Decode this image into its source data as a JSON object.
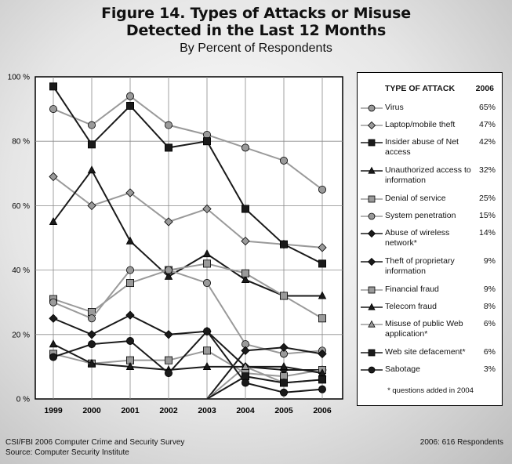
{
  "figure": {
    "title_line1": "Figure 14. Types of Attacks or Misuse",
    "title_line2": "Detected in the Last 12 Months",
    "subtitle": "By Percent of Respondents"
  },
  "legend": {
    "header_type": "TYPE OF ATTACK",
    "header_year": "2006",
    "note": "* questions added in 2004"
  },
  "footer": {
    "source_line1": "CSI/FBI 2006 Computer Crime and Security Survey",
    "source_line2": "Source: Computer Security Institute",
    "respondents": "2006: 616 Respondents"
  },
  "chart_data": {
    "type": "line",
    "x": [
      "1999",
      "2000",
      "2001",
      "2002",
      "2003",
      "2004",
      "2005",
      "2006"
    ],
    "ylim": [
      0,
      100
    ],
    "yticks": [
      0,
      20,
      40,
      60,
      80,
      100
    ],
    "ytick_labels": [
      "0 %",
      "20 %",
      "40 %",
      "60 %",
      "80 %",
      "100 %"
    ],
    "grid": true,
    "legend_position": "right",
    "series": [
      {
        "name": "Virus",
        "value_2006": "65%",
        "marker": "circle",
        "color": "#9a9a9a",
        "values": [
          90,
          85,
          94,
          85,
          82,
          78,
          74,
          65
        ]
      },
      {
        "name": "Laptop/mobile theft",
        "value_2006": "47%",
        "marker": "diamond",
        "color": "#9a9a9a",
        "values": [
          69,
          60,
          64,
          55,
          59,
          49,
          48,
          47
        ]
      },
      {
        "name": "Insider abuse of Net access",
        "value_2006": "42%",
        "marker": "square",
        "color": "#1a1a1a",
        "values": [
          97,
          79,
          91,
          78,
          80,
          59,
          48,
          42
        ]
      },
      {
        "name": "Unauthorized access to information",
        "value_2006": "32%",
        "marker": "triangle",
        "color": "#1a1a1a",
        "values": [
          55,
          71,
          49,
          38,
          45,
          37,
          32,
          32
        ]
      },
      {
        "name": "Denial of service",
        "value_2006": "25%",
        "marker": "square",
        "color": "#9a9a9a",
        "values": [
          31,
          27,
          36,
          40,
          42,
          39,
          32,
          25
        ]
      },
      {
        "name": "System penetration",
        "value_2006": "15%",
        "marker": "circle",
        "color": "#9a9a9a",
        "values": [
          30,
          25,
          40,
          40,
          36,
          17,
          14,
          15
        ]
      },
      {
        "name": "Abuse of wireless network*",
        "value_2006": "14%",
        "marker": "diamond",
        "color": "#1a1a1a",
        "values": [
          null,
          null,
          null,
          null,
          null,
          15,
          16,
          14
        ]
      },
      {
        "name": "Theft of proprietary information",
        "value_2006": "9%",
        "marker": "diamond",
        "color": "#1a1a1a",
        "values": [
          25,
          20,
          26,
          20,
          21,
          10,
          9,
          9
        ]
      },
      {
        "name": "Financial fraud",
        "value_2006": "9%",
        "marker": "square",
        "color": "#9a9a9a",
        "values": [
          14,
          11,
          12,
          12,
          15,
          8,
          7,
          9
        ]
      },
      {
        "name": "Telecom fraud",
        "value_2006": "8%",
        "marker": "triangle",
        "color": "#1a1a1a",
        "values": [
          17,
          11,
          10,
          9,
          10,
          10,
          10,
          8
        ]
      },
      {
        "name": "Misuse of public Web application*",
        "value_2006": "6%",
        "marker": "triangle",
        "color": "#9a9a9a",
        "values": [
          null,
          null,
          null,
          null,
          null,
          10,
          5,
          6
        ]
      },
      {
        "name": "Web site defacement*",
        "value_2006": "6%",
        "marker": "square",
        "color": "#1a1a1a",
        "values": [
          null,
          null,
          null,
          null,
          null,
          7,
          5,
          6
        ]
      },
      {
        "name": "Sabotage",
        "value_2006": "3%",
        "marker": "circle",
        "color": "#1a1a1a",
        "values": [
          13,
          17,
          18,
          8,
          21,
          5,
          2,
          3
        ]
      }
    ]
  }
}
